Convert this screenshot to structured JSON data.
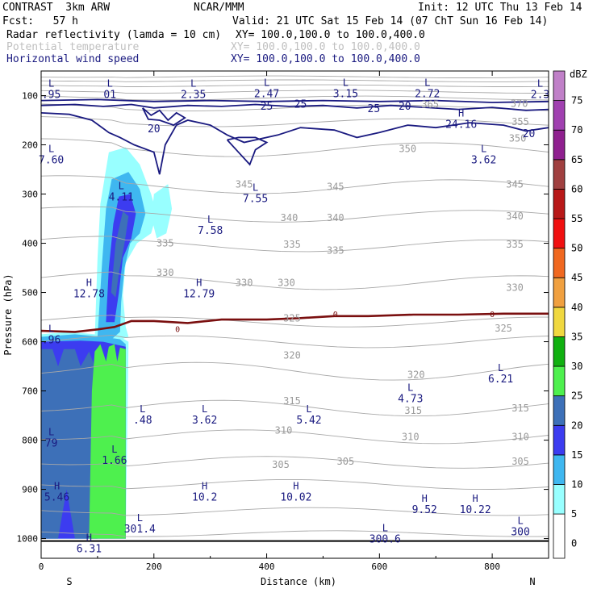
{
  "header": {
    "model": "CONTRAST  3km ARW",
    "org": "NCAR/MMM",
    "init": "Init: 12 UTC Thu 13 Feb 14",
    "fcst": "Fcst:   57 h",
    "valid": "Valid: 21 UTC Sat 15 Feb 14 (07 ChT Sun 16 Feb 14)",
    "fields": [
      {
        "name": "Radar reflectivity (lamda = 10 cm)",
        "xy": "XY= 100.0,100.0 to 100.0,400.0",
        "color": "#000000"
      },
      {
        "name": "Potential temperature",
        "xy": "XY= 100.0,100.0 to 100.0,400.0",
        "color": "#c0c0c0"
      },
      {
        "name": "Horizontal wind speed",
        "xy": "XY= 100.0,100.0 to 100.0,400.0",
        "color": "#1a1a80"
      }
    ]
  },
  "chart_data": {
    "type": "cross-section contour",
    "xlabel": "Distance (km)",
    "ylabel": "Pressure (hPa)",
    "xlim": [
      0,
      900
    ],
    "ylim": [
      1040,
      50
    ],
    "xticks": [
      0,
      200,
      400,
      600,
      800
    ],
    "yticks": [
      100,
      200,
      300,
      400,
      500,
      600,
      700,
      800,
      900,
      1000
    ],
    "x_end_labels": [
      "S",
      "N"
    ],
    "colorbar": {
      "title": "dBZ",
      "levels": [
        0,
        5,
        10,
        15,
        20,
        25,
        30,
        35,
        40,
        45,
        50,
        55,
        60,
        65,
        70,
        75
      ],
      "colors": [
        "#ffffff",
        "#98ffff",
        "#3fb7f0",
        "#3c3cf0",
        "#3d70b8",
        "#4ef04e",
        "#10b010",
        "#f0d840",
        "#f0a040",
        "#f06820",
        "#f01010",
        "#b81818",
        "#a04040",
        "#8f208f",
        "#a040b0",
        "#c080c8"
      ]
    },
    "theta_labels": [
      {
        "text": "365",
        "x": 690,
        "p": 118
      },
      {
        "text": "370",
        "x": 848,
        "p": 116
      },
      {
        "text": "355",
        "x": 850,
        "p": 153
      },
      {
        "text": "350",
        "x": 650,
        "p": 208
      },
      {
        "text": "350",
        "x": 845,
        "p": 187
      },
      {
        "text": "345",
        "x": 360,
        "p": 280
      },
      {
        "text": "345",
        "x": 522,
        "p": 285
      },
      {
        "text": "345",
        "x": 840,
        "p": 280
      },
      {
        "text": "340",
        "x": 440,
        "p": 348
      },
      {
        "text": "340",
        "x": 522,
        "p": 348
      },
      {
        "text": "340",
        "x": 840,
        "p": 345
      },
      {
        "text": "335",
        "x": 220,
        "p": 400
      },
      {
        "text": "335",
        "x": 445,
        "p": 402
      },
      {
        "text": "335",
        "x": 522,
        "p": 415
      },
      {
        "text": "335",
        "x": 840,
        "p": 402
      },
      {
        "text": "330",
        "x": 220,
        "p": 460
      },
      {
        "text": "330",
        "x": 360,
        "p": 480
      },
      {
        "text": "330",
        "x": 435,
        "p": 480
      },
      {
        "text": "330",
        "x": 840,
        "p": 490
      },
      {
        "text": "325",
        "x": 445,
        "p": 552
      },
      {
        "text": "325",
        "x": 820,
        "p": 573
      },
      {
        "text": "320",
        "x": 445,
        "p": 628
      },
      {
        "text": "320",
        "x": 665,
        "p": 667
      },
      {
        "text": "315",
        "x": 445,
        "p": 720
      },
      {
        "text": "315",
        "x": 660,
        "p": 740
      },
      {
        "text": "315",
        "x": 850,
        "p": 735
      },
      {
        "text": "310",
        "x": 430,
        "p": 780
      },
      {
        "text": "310",
        "x": 655,
        "p": 793
      },
      {
        "text": "310",
        "x": 850,
        "p": 793
      },
      {
        "text": "305",
        "x": 425,
        "p": 850
      },
      {
        "text": "305",
        "x": 540,
        "p": 843
      },
      {
        "text": "305",
        "x": 850,
        "p": 843
      }
    ],
    "speed_labels": [
      {
        "text": "25",
        "x": 400,
        "p": 122
      },
      {
        "text": "25",
        "x": 460,
        "p": 118
      },
      {
        "text": "25",
        "x": 590,
        "p": 127
      },
      {
        "text": "20",
        "x": 645,
        "p": 122
      },
      {
        "text": "20",
        "x": 200,
        "p": 168
      },
      {
        "text": "20",
        "x": 865,
        "p": 178
      }
    ],
    "freezing_labels": [
      {
        "text": "0",
        "x": 242,
        "p": 575
      },
      {
        "text": "0",
        "x": 522,
        "p": 545
      },
      {
        "text": "0",
        "x": 800,
        "p": 545
      }
    ],
    "extrema": [
      {
        "letter": "L",
        "value": ".95",
        "x": 18,
        "p": 82
      },
      {
        "letter": "L",
        "value": "01",
        "x": 122,
        "p": 82
      },
      {
        "letter": "L",
        "value": "2.35",
        "x": 270,
        "p": 82
      },
      {
        "letter": "L",
        "value": "2.47",
        "x": 400,
        "p": 80
      },
      {
        "letter": "L",
        "value": "3.15",
        "x": 540,
        "p": 80
      },
      {
        "letter": "L",
        "value": "2.72",
        "x": 685,
        "p": 80
      },
      {
        "letter": "L",
        "value": "2.3",
        "x": 885,
        "p": 82
      },
      {
        "letter": "H",
        "value": "24.16",
        "x": 745,
        "p": 143
      },
      {
        "letter": "L",
        "value": "7.60",
        "x": 18,
        "p": 215
      },
      {
        "letter": "L",
        "value": "3.62",
        "x": 785,
        "p": 215
      },
      {
        "letter": "L",
        "value": "4.11",
        "x": 142,
        "p": 290
      },
      {
        "letter": "L",
        "value": "7.55",
        "x": 380,
        "p": 293
      },
      {
        "letter": "L",
        "value": "7.58",
        "x": 300,
        "p": 358
      },
      {
        "letter": "H",
        "value": "12.78",
        "x": 85,
        "p": 487
      },
      {
        "letter": "H",
        "value": "12.79",
        "x": 280,
        "p": 487
      },
      {
        "letter": "L",
        "value": ".96",
        "x": 18,
        "p": 580
      },
      {
        "letter": "L",
        "value": "6.21",
        "x": 815,
        "p": 660
      },
      {
        "letter": "L",
        "value": "4.73",
        "x": 655,
        "p": 700
      },
      {
        "letter": "L",
        "value": ".48",
        "x": 180,
        "p": 743
      },
      {
        "letter": "L",
        "value": "3.62",
        "x": 290,
        "p": 743
      },
      {
        "letter": "L",
        "value": "5.42",
        "x": 475,
        "p": 743
      },
      {
        "letter": "L",
        "value": "79",
        "x": 18,
        "p": 790
      },
      {
        "letter": "L",
        "value": "1.66",
        "x": 130,
        "p": 825
      },
      {
        "letter": "H",
        "value": "5.46",
        "x": 28,
        "p": 900
      },
      {
        "letter": "H",
        "value": "10.2",
        "x": 290,
        "p": 900
      },
      {
        "letter": "H",
        "value": "10.02",
        "x": 452,
        "p": 900
      },
      {
        "letter": "H",
        "value": "9.52",
        "x": 680,
        "p": 925
      },
      {
        "letter": "H",
        "value": "10.22",
        "x": 770,
        "p": 925
      },
      {
        "letter": "L",
        "value": "301.4",
        "x": 175,
        "p": 965
      },
      {
        "letter": "L",
        "value": "300.6",
        "x": 610,
        "p": 985
      },
      {
        "letter": "L",
        "value": "300",
        "x": 850,
        "p": 970
      },
      {
        "letter": "H",
        "value": "6.31",
        "x": 85,
        "p": 1005
      }
    ],
    "reflectivity_regions": [
      {
        "level": 5,
        "points": [
          [
            95,
            595
          ],
          [
            100,
            430
          ],
          [
            105,
            320
          ],
          [
            120,
            215
          ],
          [
            150,
            205
          ],
          [
            175,
            240
          ],
          [
            195,
            300
          ],
          [
            205,
            340
          ],
          [
            195,
            380
          ],
          [
            170,
            400
          ],
          [
            150,
            440
          ],
          [
            145,
            505
          ],
          [
            150,
            570
          ],
          [
            155,
            590
          ],
          [
            130,
            600
          ],
          [
            90,
            590
          ]
        ]
      },
      {
        "level": 5,
        "points": [
          [
            200,
            300
          ],
          [
            225,
            280
          ],
          [
            232,
            330
          ],
          [
            222,
            380
          ],
          [
            205,
            390
          ],
          [
            196,
            350
          ]
        ]
      },
      {
        "level": 5,
        "points": [
          [
            0,
            585
          ],
          [
            50,
            580
          ],
          [
            95,
            585
          ],
          [
            140,
            590
          ],
          [
            155,
            600
          ],
          [
            150,
            1000
          ],
          [
            0,
            1000
          ]
        ]
      },
      {
        "level": 10,
        "points": [
          [
            100,
            590
          ],
          [
            108,
            440
          ],
          [
            115,
            330
          ],
          [
            125,
            270
          ],
          [
            155,
            255
          ],
          [
            175,
            290
          ],
          [
            185,
            340
          ],
          [
            175,
            380
          ],
          [
            158,
            400
          ],
          [
            148,
            450
          ],
          [
            142,
            520
          ],
          [
            140,
            580
          ],
          [
            125,
            595
          ]
        ]
      },
      {
        "level": 10,
        "points": [
          [
            0,
            590
          ],
          [
            60,
            585
          ],
          [
            110,
            590
          ],
          [
            140,
            595
          ],
          [
            150,
            605
          ],
          [
            150,
            1000
          ],
          [
            0,
            1000
          ]
        ]
      },
      {
        "level": 15,
        "points": [
          [
            115,
            560
          ],
          [
            120,
            450
          ],
          [
            128,
            360
          ],
          [
            138,
            305
          ],
          [
            158,
            300
          ],
          [
            168,
            340
          ],
          [
            160,
            390
          ],
          [
            145,
            430
          ],
          [
            138,
            500
          ],
          [
            130,
            560
          ]
        ]
      },
      {
        "level": 15,
        "points": [
          [
            0,
            600
          ],
          [
            70,
            598
          ],
          [
            110,
            600
          ],
          [
            150,
            610
          ],
          [
            150,
            1000
          ],
          [
            0,
            1000
          ]
        ]
      },
      {
        "level": 20,
        "points": [
          [
            124,
            500
          ],
          [
            132,
            400
          ],
          [
            145,
            335
          ],
          [
            155,
            345
          ],
          [
            148,
            400
          ],
          [
            138,
            460
          ],
          [
            132,
            510
          ]
        ]
      },
      {
        "level": 20,
        "points": [
          [
            0,
            615
          ],
          [
            20,
            615
          ],
          [
            30,
            650
          ],
          [
            40,
            615
          ],
          [
            60,
            615
          ],
          [
            70,
            650
          ],
          [
            85,
            620
          ],
          [
            95,
            650
          ],
          [
            100,
            1000
          ],
          [
            60,
            1000
          ],
          [
            45,
            900
          ],
          [
            30,
            1000
          ],
          [
            0,
            1000
          ]
        ]
      },
      {
        "level": 25,
        "points": [
          [
            90,
            700
          ],
          [
            95,
            620
          ],
          [
            105,
            605
          ],
          [
            115,
            640
          ],
          [
            120,
            610
          ],
          [
            130,
            605
          ],
          [
            135,
            640
          ],
          [
            140,
            612
          ],
          [
            150,
            615
          ],
          [
            150,
            1000
          ],
          [
            85,
            1000
          ]
        ]
      }
    ]
  }
}
